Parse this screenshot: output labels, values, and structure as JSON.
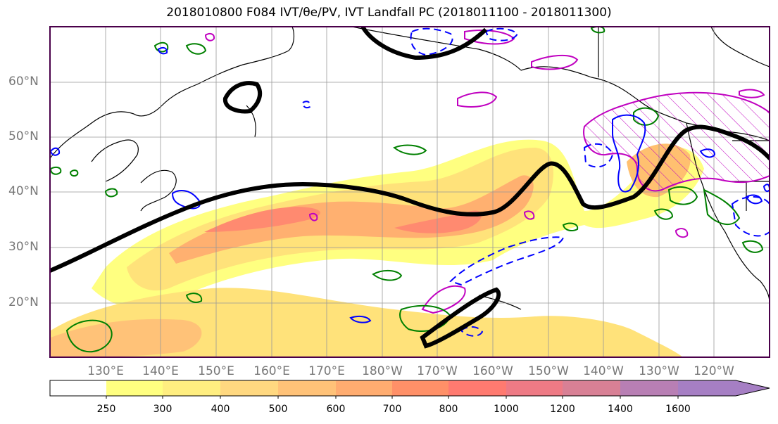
{
  "map": {
    "title": "2018010800 F084 IVT/θe/PV, IVT Landfall PC (2018011100 - 2018011300)",
    "lat_labels": [
      "60°N",
      "50°N",
      "40°N",
      "30°N",
      "20°N"
    ],
    "lon_labels": [
      "130°E",
      "140°E",
      "150°E",
      "160°E",
      "170°E",
      "180°W",
      "170°W",
      "160°W",
      "150°W",
      "140°W",
      "130°W",
      "120°W"
    ],
    "colorbar": {
      "ticks": [
        "250",
        "300",
        "400",
        "500",
        "600",
        "700",
        "800",
        "1000",
        "1200",
        "1400",
        "1600"
      ],
      "colors": [
        "#ffff80",
        "#ffee80",
        "#ffd880",
        "#ffc278",
        "#ffac70",
        "#ff9068",
        "#ff7a70",
        "#ee7a85",
        "#d88095",
        "#b87fb4",
        "#a67fc4"
      ]
    },
    "contour_colors": {
      "ivt_fill": "#ffb070",
      "jet_line": "#000000",
      "positive_pc": "#008000",
      "negative_pc": "#0000ff",
      "pv": "#c000c0"
    }
  }
}
